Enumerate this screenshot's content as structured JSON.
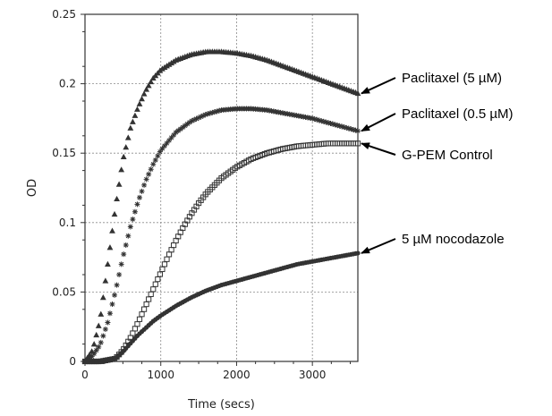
{
  "chart_data": {
    "type": "scatter",
    "title": "",
    "xlabel": "Time (secs)",
    "ylabel": "OD",
    "xlim": [
      0,
      3600
    ],
    "ylim": [
      0,
      0.25
    ],
    "xticks": [
      0,
      1000,
      2000,
      3000
    ],
    "xtick_labels": [
      "0",
      "1000",
      "2000",
      "3000"
    ],
    "yticks": [
      0,
      0.05,
      0.1,
      0.15,
      0.2,
      0.25
    ],
    "ytick_labels": [
      "0",
      "0.05",
      "0.1",
      "0.15",
      "0.2",
      "0.25"
    ],
    "grid": true,
    "series": [
      {
        "name": "Paclitaxel (5 µM)",
        "marker": "triangle",
        "color": "#333333",
        "x": [
          0,
          100,
          200,
          300,
          400,
          500,
          600,
          700,
          800,
          900,
          1000,
          1200,
          1400,
          1600,
          1800,
          2000,
          2200,
          2400,
          2600,
          2800,
          3000,
          3200,
          3400,
          3600
        ],
        "y": [
          0,
          0.008,
          0.03,
          0.07,
          0.11,
          0.145,
          0.168,
          0.183,
          0.195,
          0.204,
          0.21,
          0.217,
          0.221,
          0.223,
          0.223,
          0.222,
          0.22,
          0.217,
          0.213,
          0.209,
          0.205,
          0.201,
          0.197,
          0.193
        ]
      },
      {
        "name": "Paclitaxel (0.5 µM)",
        "marker": "star",
        "color": "#333333",
        "x": [
          0,
          100,
          200,
          300,
          400,
          500,
          600,
          700,
          800,
          900,
          1000,
          1200,
          1400,
          1600,
          1800,
          2000,
          2200,
          2400,
          2600,
          2800,
          3000,
          3200,
          3400,
          3600
        ],
        "y": [
          0,
          0.004,
          0.012,
          0.028,
          0.05,
          0.075,
          0.097,
          0.115,
          0.13,
          0.142,
          0.152,
          0.165,
          0.173,
          0.178,
          0.181,
          0.182,
          0.182,
          0.181,
          0.179,
          0.177,
          0.175,
          0.172,
          0.169,
          0.166
        ]
      },
      {
        "name": "G-PEM Control",
        "marker": "square",
        "color": "#333333",
        "x": [
          0,
          200,
          400,
          500,
          600,
          700,
          800,
          900,
          1000,
          1100,
          1200,
          1300,
          1400,
          1500,
          1600,
          1800,
          2000,
          2200,
          2400,
          2600,
          2800,
          3000,
          3200,
          3400,
          3600
        ],
        "y": [
          0,
          0,
          0.002,
          0.008,
          0.017,
          0.028,
          0.04,
          0.052,
          0.064,
          0.076,
          0.087,
          0.097,
          0.106,
          0.114,
          0.121,
          0.132,
          0.14,
          0.146,
          0.15,
          0.153,
          0.155,
          0.156,
          0.157,
          0.157,
          0.157
        ]
      },
      {
        "name": "5 µM nocodazole",
        "marker": "circle",
        "color": "#333333",
        "x": [
          0,
          200,
          400,
          500,
          600,
          700,
          800,
          900,
          1000,
          1200,
          1400,
          1600,
          1800,
          2000,
          2200,
          2400,
          2600,
          2800,
          3000,
          3200,
          3400,
          3600
        ],
        "y": [
          0,
          0,
          0.002,
          0.007,
          0.013,
          0.019,
          0.024,
          0.029,
          0.033,
          0.04,
          0.046,
          0.051,
          0.055,
          0.058,
          0.061,
          0.064,
          0.067,
          0.07,
          0.072,
          0.074,
          0.076,
          0.078
        ]
      }
    ],
    "annotations": [
      {
        "text": "Paclitaxel (5 µM)",
        "series": 0
      },
      {
        "text": "Paclitaxel (0.5 µM)",
        "series": 1
      },
      {
        "text": "G-PEM Control",
        "series": 2
      },
      {
        "text": "5 µM nocodazole",
        "series": 3
      }
    ]
  }
}
